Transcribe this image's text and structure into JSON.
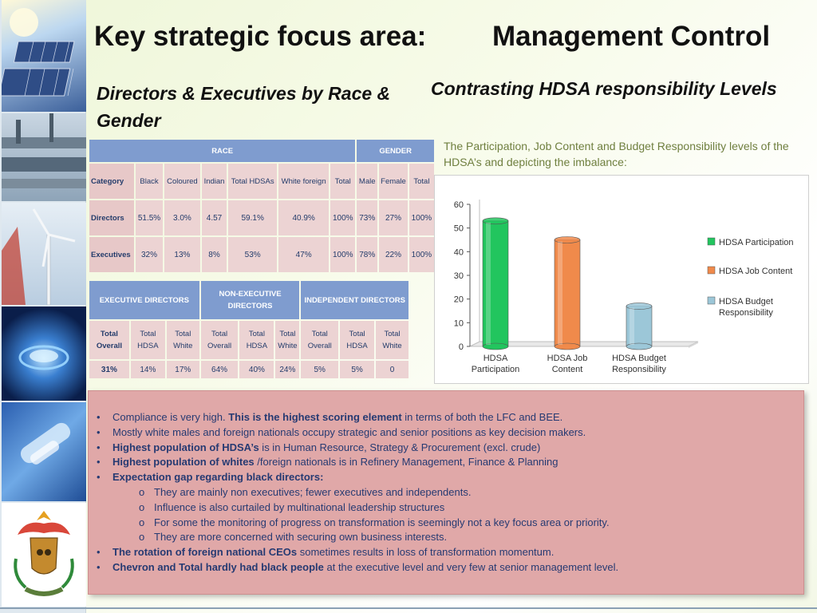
{
  "title": {
    "left": "Key strategic focus area:",
    "right": "Management Control"
  },
  "subtitles": {
    "left": "Directors & Executives by Race & Gender",
    "right": "Contrasting HDSA responsibility Levels"
  },
  "chart_description": "The Participation, Job Content and Budget Responsibility levels of the HDSA’s and depicting the imbalance:",
  "race_table": {
    "group_headers": {
      "race": "RACE",
      "gender": "GENDER"
    },
    "columns": [
      "Category",
      "Black",
      "Coloured",
      "Indian",
      "Total HDSAs",
      "White foreign",
      "Total",
      "Male",
      "Female",
      "Total"
    ],
    "rows": [
      [
        "Directors",
        "51.5%",
        "3.0%",
        "4.57",
        "59.1%",
        "40.9%",
        "100%",
        "73%",
        "27%",
        "100%"
      ],
      [
        "Executives",
        "32%",
        "13%",
        "8%",
        "53%",
        "47%",
        "100%",
        "78%",
        "22%",
        "100%"
      ]
    ]
  },
  "exec_table": {
    "group_headers": {
      "executive": "EXECUTIVE DIRECTORS",
      "non_executive": "NON-EXECUTIVE DIRECTORS",
      "independent": "INDEPENDENT DIRECTORS"
    },
    "columns": [
      "Total Overall",
      "Total HDSA",
      "Total White",
      "Total Overall",
      "Total HDSA",
      "Total White",
      "Total Overall",
      "Total HDSA",
      "Total White"
    ],
    "values": [
      "31%",
      "14%",
      "17%",
      "64%",
      "40%",
      "24%",
      "5%",
      "5%",
      "0"
    ]
  },
  "chart_data": {
    "type": "bar",
    "categories": [
      "HDSA Participation",
      "HDSA Job Content",
      "HDSA Budget Responsibility"
    ],
    "values": [
      53,
      45,
      17
    ],
    "colors": [
      "#22c55e",
      "#f08a4b",
      "#9cc7d8"
    ],
    "legend": [
      "HDSA Participation",
      "HDSA Job Content",
      "HDSA Budget Responsibility"
    ],
    "legend_position": "right",
    "ylim": [
      0,
      60
    ],
    "yticks": [
      "0",
      "10",
      "20",
      "30",
      "40",
      "50",
      "60"
    ],
    "grid": false,
    "style": "3d-cylinder"
  },
  "bullets": [
    {
      "level": 1,
      "parts": [
        {
          "t": "Compliance is very high. ",
          "b": false
        },
        {
          "t": "This is the highest scoring element",
          "b": true
        },
        {
          "t": " in terms of both the LFC and BEE.",
          "b": false
        }
      ]
    },
    {
      "level": 1,
      "parts": [
        {
          "t": "Mostly white males and foreign nationals occupy strategic and senior positions as key decision makers.",
          "b": false
        }
      ]
    },
    {
      "level": 1,
      "parts": [
        {
          "t": "Highest population of HDSA’s",
          "b": true
        },
        {
          "t": " is in Human Resource, Strategy & Procurement (excl. crude)",
          "b": false
        }
      ]
    },
    {
      "level": 1,
      "parts": [
        {
          "t": "Highest population of whites",
          "b": true
        },
        {
          "t": " /foreign nationals is in Refinery Management, Finance & Planning",
          "b": false
        }
      ]
    },
    {
      "level": 1,
      "parts": [
        {
          "t": "Expectation gap regarding black directors:",
          "b": true
        }
      ]
    },
    {
      "level": 2,
      "parts": [
        {
          "t": "They are mainly non executives; fewer executives and independents.",
          "b": false
        }
      ]
    },
    {
      "level": 2,
      "parts": [
        {
          "t": "Influence is also curtailed by multinational leadership structures",
          "b": false
        }
      ]
    },
    {
      "level": 2,
      "parts": [
        {
          "t": "For some the monitoring of progress on transformation is seemingly not a key focus area or priority.",
          "b": false
        }
      ]
    },
    {
      "level": 2,
      "parts": [
        {
          "t": " They are more concerned with securing own business interests.",
          "b": false
        }
      ]
    },
    {
      "level": 1,
      "parts": [
        {
          "t": "The rotation of foreign national CEOs",
          "b": true
        },
        {
          "t": " sometimes results in loss of transformation momentum.",
          "b": false
        }
      ]
    },
    {
      "level": 1,
      "parts": [
        {
          "t": "Chevron and Total hardly had black people",
          "b": true
        },
        {
          "t": " at the executive level and very few at senior management level.",
          "b": false
        }
      ]
    }
  ],
  "icons": [
    "solar-panel-image",
    "pipeline-image",
    "wind-turbine-image",
    "gas-flame-image",
    "cable-image",
    "coat-of-arms-logo"
  ]
}
